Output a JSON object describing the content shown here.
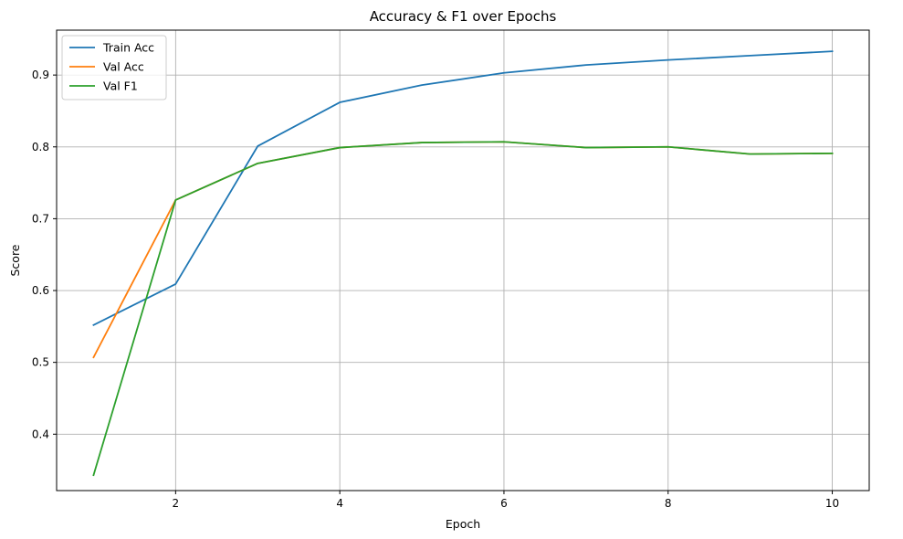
{
  "chart_data": {
    "type": "line",
    "title": "Accuracy & F1 over Epochs",
    "xlabel": "Epoch",
    "ylabel": "Score",
    "xlim": [
      0.55,
      10.45
    ],
    "ylim": [
      0.3215,
      0.9625
    ],
    "xticks": [
      2,
      4,
      6,
      8,
      10
    ],
    "yticks": [
      0.4,
      0.5,
      0.6,
      0.7,
      0.8,
      0.9
    ],
    "grid": true,
    "legend_position": "top-left",
    "x": [
      1,
      2,
      3,
      4,
      5,
      6,
      7,
      8,
      9,
      10
    ],
    "series": [
      {
        "name": "Train Acc",
        "color": "#1f77b4",
        "values": [
          0.552,
          0.609,
          0.801,
          0.862,
          0.886,
          0.903,
          0.914,
          0.921,
          0.927,
          0.933
        ]
      },
      {
        "name": "Val Acc",
        "color": "#ff7f0e",
        "values": [
          0.507,
          0.726,
          0.777,
          0.799,
          0.806,
          0.807,
          0.799,
          0.8,
          0.79,
          0.791
        ]
      },
      {
        "name": "Val F1",
        "color": "#2ca02c",
        "values": [
          0.343,
          0.726,
          0.777,
          0.799,
          0.806,
          0.807,
          0.799,
          0.8,
          0.79,
          0.791
        ]
      }
    ]
  }
}
